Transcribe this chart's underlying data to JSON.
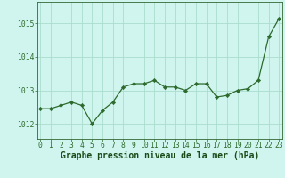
{
  "x": [
    0,
    1,
    2,
    3,
    4,
    5,
    6,
    7,
    8,
    9,
    10,
    11,
    12,
    13,
    14,
    15,
    16,
    17,
    18,
    19,
    20,
    21,
    22,
    23
  ],
  "y": [
    1012.45,
    1012.45,
    1012.55,
    1012.65,
    1012.55,
    1012.0,
    1012.4,
    1012.65,
    1013.1,
    1013.2,
    1013.2,
    1013.3,
    1013.1,
    1013.1,
    1013.0,
    1013.2,
    1013.2,
    1012.8,
    1012.85,
    1013.0,
    1013.05,
    1013.3,
    1014.6,
    1015.15
  ],
  "line_color": "#2d6a2d",
  "marker_color": "#2d6a2d",
  "bg_color": "#cff5ee",
  "grid_color": "#aaddcc",
  "xlabel": "Graphe pression niveau de la mer (hPa)",
  "xlabel_fontsize": 7.0,
  "ytick_labels": [
    "1012",
    "1013",
    "1014",
    "1015"
  ],
  "ytick_vals": [
    1012,
    1013,
    1014,
    1015
  ],
  "xticks": [
    0,
    1,
    2,
    3,
    4,
    5,
    6,
    7,
    8,
    9,
    10,
    11,
    12,
    13,
    14,
    15,
    16,
    17,
    18,
    19,
    20,
    21,
    22,
    23
  ],
  "ylim": [
    1011.55,
    1015.65
  ],
  "xlim": [
    -0.3,
    23.3
  ],
  "tick_fontsize": 5.8,
  "xlabel_color": "#1a4a1a"
}
